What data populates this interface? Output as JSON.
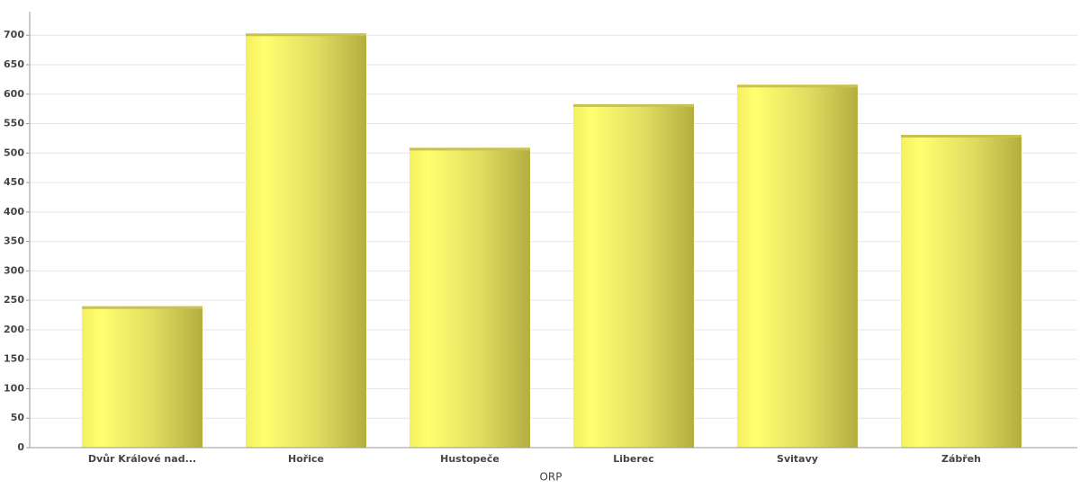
{
  "chart_data": {
    "type": "bar",
    "x_label": "ORP",
    "categories": [
      "Dvůr Králové nad...",
      "Hořice",
      "Hustopeče",
      "Liberec",
      "Svitavy",
      "Zábřeh"
    ],
    "values": [
      240,
      703,
      509,
      583,
      616,
      531
    ],
    "color": "#ffff66",
    "ylim": [
      0,
      740
    ],
    "yticks": [
      0,
      50,
      100,
      150,
      200,
      250,
      300,
      350,
      400,
      450,
      500,
      550,
      600,
      650,
      700
    ],
    "grid": true
  }
}
